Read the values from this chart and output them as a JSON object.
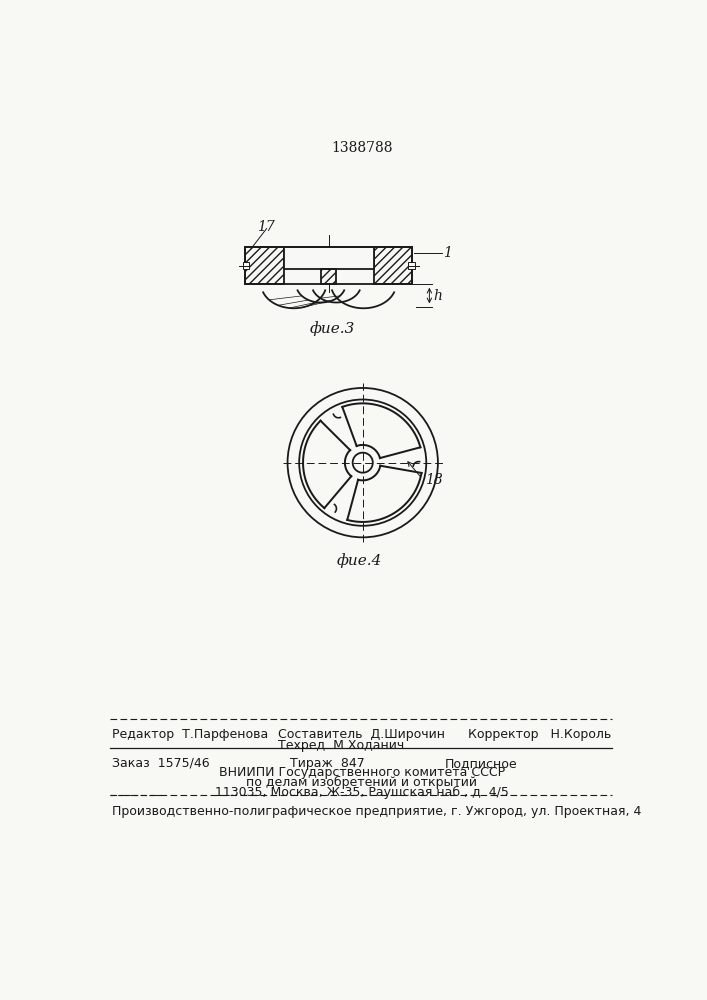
{
  "title_text": "1388788",
  "fig3_label": "фие.3",
  "fig4_label": "фие.4",
  "label_17": "17",
  "label_1": "1",
  "label_h": "h",
  "label_18": "18",
  "bg_color": "#f8f8f5",
  "line_color": "#1a1a1a",
  "footer_redaktor": "Редактор  Т.Парфенова",
  "footer_sostavitel": "Составитель  Д.Широчин",
  "footer_tehred": "Техред  М.Ходанич",
  "footer_korrektor": "Корректор   Н.Король",
  "footer_zakaz": "Заказ  1575/46",
  "footer_tirazh": "Тираж  847",
  "footer_podpisnoe": "Подписное",
  "footer_vnipi": "ВНИИПИ Государственного комитета СССР",
  "footer_po": "по делам изобретений и открытий",
  "footer_addr": "113035, Москва, Ж-35, Раушская наб., д. 4/5",
  "footer_last": "Производственно-полиграфическое предприятие, г. Ужгород, ул. Проектная, 4"
}
